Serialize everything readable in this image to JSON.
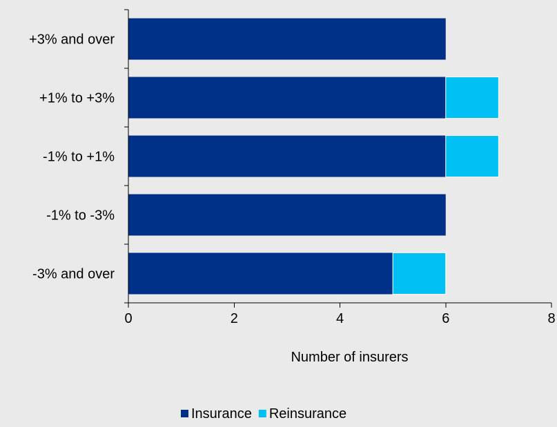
{
  "chart_data": {
    "type": "bar",
    "orientation": "horizontal",
    "stacked": true,
    "categories": [
      "+3% and over",
      "+1% to +3%",
      "-1% to +1%",
      "-1% to -3%",
      "-3% and over"
    ],
    "series": [
      {
        "name": "Insurance",
        "values": [
          6,
          6,
          6,
          6,
          5
        ],
        "color": "#003087"
      },
      {
        "name": "Reinsurance",
        "values": [
          0,
          1,
          1,
          0,
          1
        ],
        "color": "#00BFF3"
      }
    ],
    "xlabel": "Number of insurers",
    "ylabel": "",
    "xlim": [
      0,
      8
    ],
    "xticks": [
      0,
      2,
      4,
      6,
      8
    ],
    "xtick_labels": [
      "0",
      "2",
      "4",
      "6",
      "8"
    ],
    "grid": false,
    "legend_position": "bottom-center",
    "background_color": "#EAEAEA"
  }
}
